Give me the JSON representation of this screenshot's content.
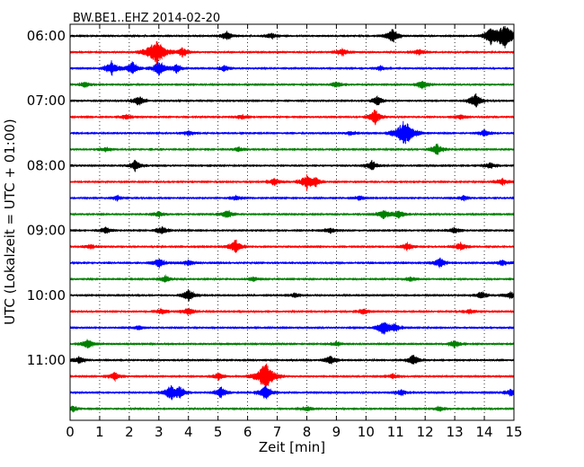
{
  "chart_data": {
    "type": "line",
    "title": "BW.BE1..EHZ 2014-02-20",
    "xlabel": "Zeit  [min]",
    "ylabel": "UTC (Lokalzeit = UTC + 01:00)",
    "xlim": [
      0,
      15
    ],
    "x_ticks": [
      "0",
      "1",
      "2",
      "3",
      "4",
      "5",
      "6",
      "7",
      "8",
      "9",
      "10",
      "11",
      "12",
      "13",
      "14",
      "15"
    ],
    "y_tick_labels": [
      "06:00",
      "07:00",
      "08:00",
      "09:00",
      "10:00",
      "11:00"
    ],
    "grid": "vertical dotted",
    "trace_colors": [
      "#000000",
      "#ff0000",
      "#0000ff",
      "#008000"
    ],
    "traces": [
      {
        "start": "06:00",
        "events": [
          [
            5.3,
            0.3
          ],
          [
            6.8,
            0.2
          ],
          [
            10.9,
            0.5
          ],
          [
            14.2,
            0.7
          ],
          [
            14.7,
            1.0
          ]
        ]
      },
      {
        "start": "06:15",
        "events": [
          [
            2.9,
            1.0
          ],
          [
            3.8,
            0.35
          ],
          [
            9.2,
            0.25
          ],
          [
            11.8,
            0.2
          ]
        ]
      },
      {
        "start": "06:30",
        "events": [
          [
            1.4,
            0.55
          ],
          [
            2.1,
            0.5
          ],
          [
            3.0,
            0.6
          ],
          [
            3.6,
            0.35
          ],
          [
            5.2,
            0.2
          ],
          [
            10.5,
            0.15
          ]
        ]
      },
      {
        "start": "06:45",
        "events": [
          [
            0.5,
            0.15
          ],
          [
            9.0,
            0.2
          ],
          [
            11.9,
            0.3
          ]
        ]
      },
      {
        "start": "07:00",
        "events": [
          [
            2.3,
            0.4
          ],
          [
            10.4,
            0.35
          ],
          [
            13.7,
            0.55
          ]
        ]
      },
      {
        "start": "07:15",
        "events": [
          [
            1.9,
            0.15
          ],
          [
            5.8,
            0.15
          ],
          [
            10.3,
            0.6
          ],
          [
            13.2,
            0.15
          ]
        ]
      },
      {
        "start": "07:30",
        "events": [
          [
            4.0,
            0.15
          ],
          [
            9.5,
            0.15
          ],
          [
            11.3,
            1.0
          ],
          [
            14.0,
            0.25
          ]
        ]
      },
      {
        "start": "07:45",
        "events": [
          [
            1.2,
            0.15
          ],
          [
            5.7,
            0.15
          ],
          [
            12.4,
            0.4
          ]
        ]
      },
      {
        "start": "08:00",
        "events": [
          [
            2.2,
            0.4
          ],
          [
            10.2,
            0.35
          ],
          [
            14.2,
            0.25
          ]
        ]
      },
      {
        "start": "08:15",
        "events": [
          [
            6.9,
            0.25
          ],
          [
            8.0,
            0.6
          ],
          [
            8.3,
            0.3
          ],
          [
            14.6,
            0.25
          ]
        ]
      },
      {
        "start": "08:30",
        "events": [
          [
            1.6,
            0.15
          ],
          [
            5.6,
            0.15
          ],
          [
            9.8,
            0.15
          ],
          [
            13.3,
            0.15
          ]
        ]
      },
      {
        "start": "08:45",
        "events": [
          [
            3.0,
            0.2
          ],
          [
            5.3,
            0.3
          ],
          [
            10.6,
            0.35
          ],
          [
            11.1,
            0.3
          ]
        ]
      },
      {
        "start": "09:00",
        "events": [
          [
            1.2,
            0.2
          ],
          [
            3.1,
            0.25
          ],
          [
            8.8,
            0.2
          ],
          [
            13.0,
            0.2
          ]
        ]
      },
      {
        "start": "09:15",
        "events": [
          [
            0.7,
            0.15
          ],
          [
            5.6,
            0.55
          ],
          [
            11.4,
            0.25
          ],
          [
            13.2,
            0.3
          ]
        ]
      },
      {
        "start": "09:30",
        "events": [
          [
            3.0,
            0.35
          ],
          [
            4.0,
            0.2
          ],
          [
            12.5,
            0.35
          ],
          [
            14.6,
            0.2
          ]
        ]
      },
      {
        "start": "09:45",
        "events": [
          [
            3.2,
            0.25
          ],
          [
            6.2,
            0.15
          ],
          [
            11.5,
            0.15
          ]
        ]
      },
      {
        "start": "10:00",
        "events": [
          [
            4.0,
            0.45
          ],
          [
            7.6,
            0.15
          ],
          [
            13.9,
            0.25
          ],
          [
            14.9,
            0.25
          ]
        ]
      },
      {
        "start": "10:15",
        "events": [
          [
            3.1,
            0.2
          ],
          [
            4.0,
            0.25
          ],
          [
            9.9,
            0.2
          ],
          [
            13.5,
            0.15
          ]
        ]
      },
      {
        "start": "10:30",
        "events": [
          [
            2.3,
            0.15
          ],
          [
            10.6,
            0.6
          ],
          [
            11.0,
            0.25
          ]
        ]
      },
      {
        "start": "10:45",
        "events": [
          [
            0.6,
            0.35
          ],
          [
            9.0,
            0.15
          ],
          [
            13.0,
            0.25
          ]
        ]
      },
      {
        "start": "11:00",
        "events": [
          [
            0.3,
            0.25
          ],
          [
            8.8,
            0.3
          ],
          [
            11.6,
            0.4
          ]
        ]
      },
      {
        "start": "11:15",
        "events": [
          [
            1.5,
            0.3
          ],
          [
            5.0,
            0.25
          ],
          [
            6.6,
            1.0
          ],
          [
            10.9,
            0.2
          ]
        ]
      },
      {
        "start": "11:30",
        "events": [
          [
            3.4,
            0.55
          ],
          [
            3.7,
            0.45
          ],
          [
            5.1,
            0.4
          ],
          [
            6.6,
            0.6
          ],
          [
            11.2,
            0.2
          ],
          [
            14.9,
            0.25
          ]
        ]
      },
      {
        "start": "11:45",
        "events": [
          [
            0.1,
            0.2
          ],
          [
            8.0,
            0.15
          ],
          [
            12.5,
            0.15
          ]
        ]
      }
    ]
  }
}
